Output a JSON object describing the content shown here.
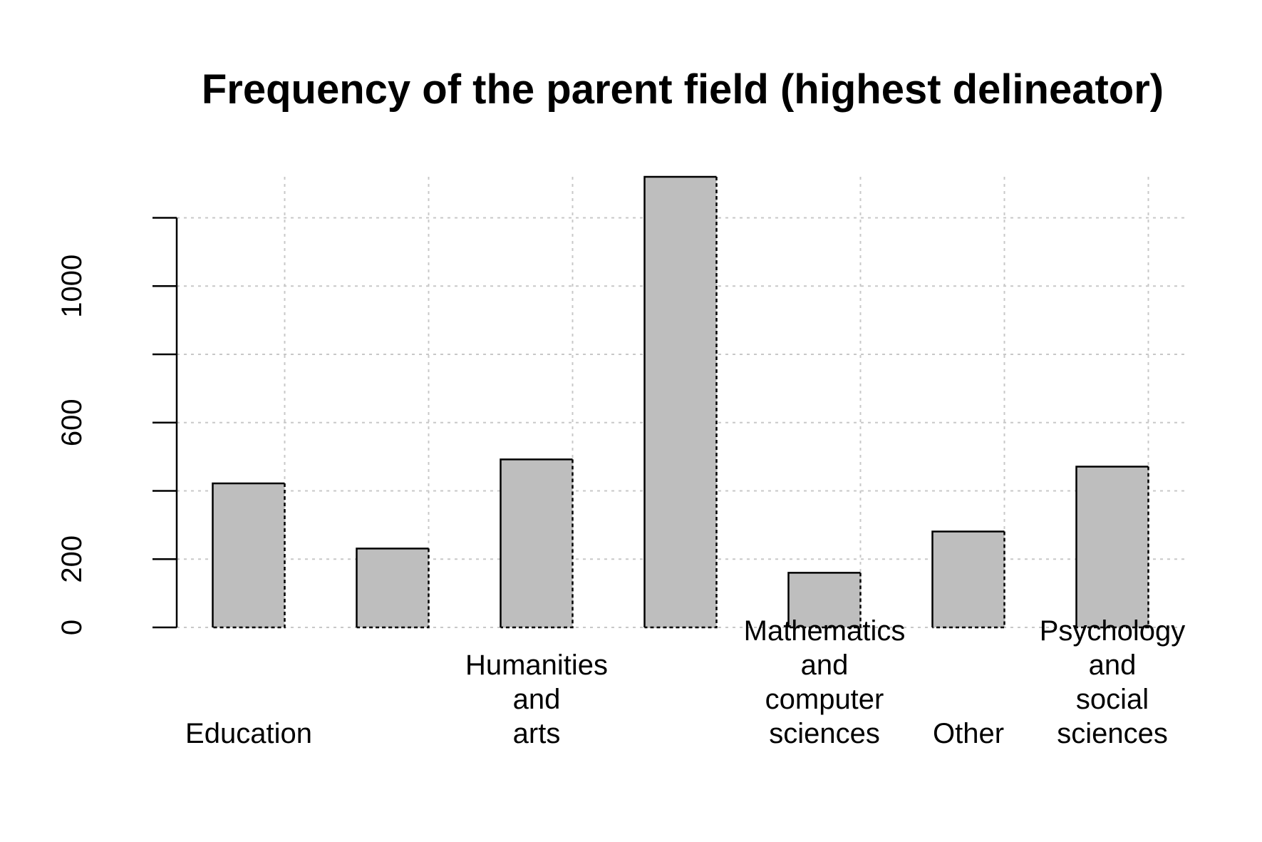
{
  "chart_data": {
    "type": "bar",
    "title": "Frequency of the parent field (highest delineator)",
    "xlabel": "",
    "ylabel": "",
    "categories": [
      "Education",
      "",
      "Humanities and arts",
      "",
      "Mathematics and computer sciences",
      "Other",
      "Psychology and social sciences"
    ],
    "category_lines": [
      [
        "Education"
      ],
      [],
      [
        "Humanities",
        "and",
        "arts"
      ],
      [],
      [
        "Mathematics",
        "and",
        "computer",
        "sciences"
      ],
      [
        "Other"
      ],
      [
        "Psychology",
        "and",
        "social",
        "sciences"
      ]
    ],
    "values": [
      422,
      231,
      492,
      1320,
      160,
      281,
      471
    ],
    "ylim": [
      0,
      1320
    ],
    "y_ticks": [
      0,
      200,
      400,
      600,
      800,
      1000,
      1200
    ],
    "y_tick_labels": [
      "0",
      "200",
      "",
      "600",
      "",
      "1000",
      ""
    ],
    "grid": true,
    "bar_color": "#bebebe",
    "grid_color": "#c8c8c8"
  }
}
